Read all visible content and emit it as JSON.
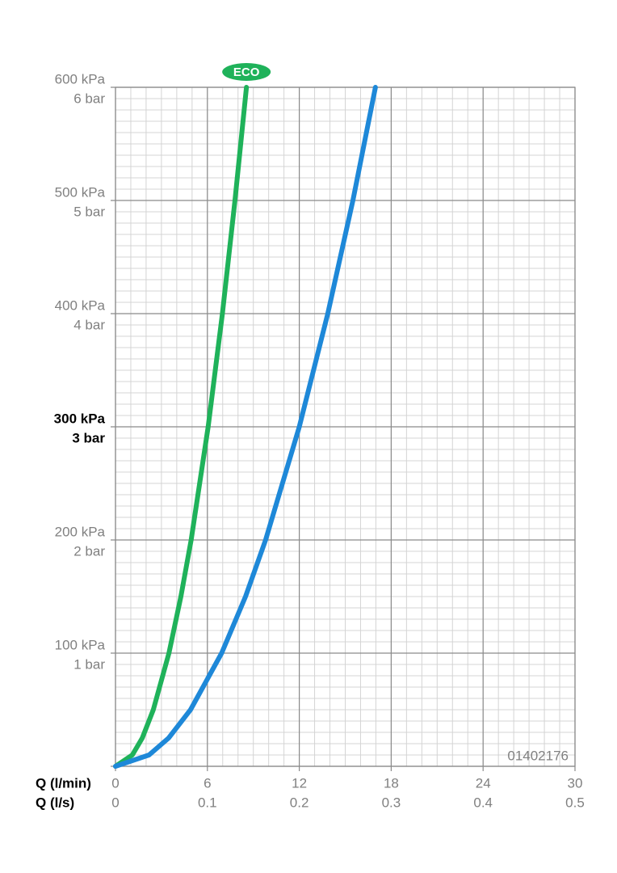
{
  "chart_data": {
    "type": "line",
    "x_label": "Q (l/min)",
    "x2_label": "Q (l/s)",
    "xlim": [
      0,
      30
    ],
    "xticks": [
      0,
      6,
      12,
      18,
      24,
      30
    ],
    "x2lim": [
      0,
      0.5
    ],
    "x2ticks": [
      0,
      0.1,
      0.2,
      0.3,
      0.4,
      0.5
    ],
    "ylim": [
      0,
      600
    ],
    "yticks": [
      {
        "value": 100,
        "label": "100 kPa"
      },
      {
        "value": 200,
        "label": "200 kPa"
      },
      {
        "value": 300,
        "label": "300 kPa"
      },
      {
        "value": 400,
        "label": "400 kPa"
      },
      {
        "value": 500,
        "label": "500 kPa"
      },
      {
        "value": 600,
        "label": "600 kPa"
      }
    ],
    "y2lim": [
      0,
      6
    ],
    "y2ticks": [
      {
        "value": 1,
        "label": "1 bar"
      },
      {
        "value": 2,
        "label": "2 bar"
      },
      {
        "value": 3,
        "label": "3 bar"
      },
      {
        "value": 4,
        "label": "4 bar"
      },
      {
        "value": 5,
        "label": "5 bar"
      },
      {
        "value": 6,
        "label": "6 bar"
      }
    ],
    "emphasized_ytick": 300,
    "grid": true,
    "x_minor_step": 1,
    "y_minor_step": 10,
    "series": [
      {
        "name": "ECO",
        "color": "#1fb25a",
        "x": [
          0,
          1.1,
          1.75,
          2.47,
          3.49,
          4.27,
          4.94,
          6.05,
          6.98,
          7.8,
          8.55
        ],
        "values": [
          0,
          10,
          25,
          50,
          100,
          150,
          200,
          300,
          400,
          500,
          600
        ]
      },
      {
        "color": "#1e88d8",
        "x": [
          0,
          2.19,
          3.47,
          4.9,
          6.93,
          8.49,
          9.8,
          12.0,
          13.86,
          15.5,
          16.97
        ],
        "values": [
          0,
          10,
          25,
          50,
          100,
          150,
          200,
          300,
          400,
          500,
          600
        ]
      }
    ],
    "code": "01402176"
  }
}
